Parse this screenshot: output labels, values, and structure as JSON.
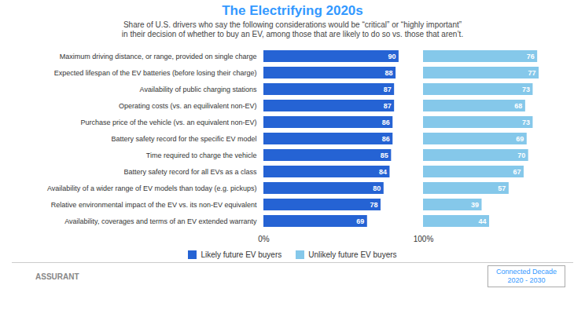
{
  "chart_data": {
    "type": "bar",
    "orientation": "horizontal",
    "title": "The Electrifying 2020s",
    "subtitle": "Share of U.S. drivers who say the following considerations would be “critical” or “highly important”\nin their decision of whether to buy an EV, among those that are likely to do so vs. those that aren’t.",
    "categories": [
      "Maximum driving distance, or range, provided on single charge",
      "Expected lifespan of the EV batteries (before losing their charge)",
      "Availability of public charging stations",
      "Operating costs (vs. an equilivalent non-EV)",
      "Purchase price of the vehicle (vs. an equivalent non-EV)",
      "Battery safety record for the specific EV model",
      "Time required to charge the vehicle",
      "Battery safety record for all EVs as a class",
      "Availability of a wider range of EV models than today (e.g. pickups)",
      "Relative environmental impact of the EV vs. its non-EV equivalent",
      "Availability, coverages and terms of an EV extended warranty"
    ],
    "series": [
      {
        "name": "Likely future EV buyers",
        "color": "#2563d4",
        "values": [
          90,
          88,
          87,
          87,
          86,
          86,
          85,
          84,
          80,
          78,
          69
        ]
      },
      {
        "name": "Unlikely future EV buyers",
        "color": "#85c8ea",
        "values": [
          76,
          77,
          73,
          68,
          73,
          69,
          70,
          67,
          57,
          39,
          44
        ]
      }
    ],
    "xlim": [
      0,
      100
    ],
    "data_labels": true,
    "tick_labels": "y",
    "legend": "bottom",
    "color": "#3399ff",
    "annotations": [
      "0%",
      "100%",
      "ASSURANT",
      "Connected Decade\n2020 - 2030"
    ]
  }
}
